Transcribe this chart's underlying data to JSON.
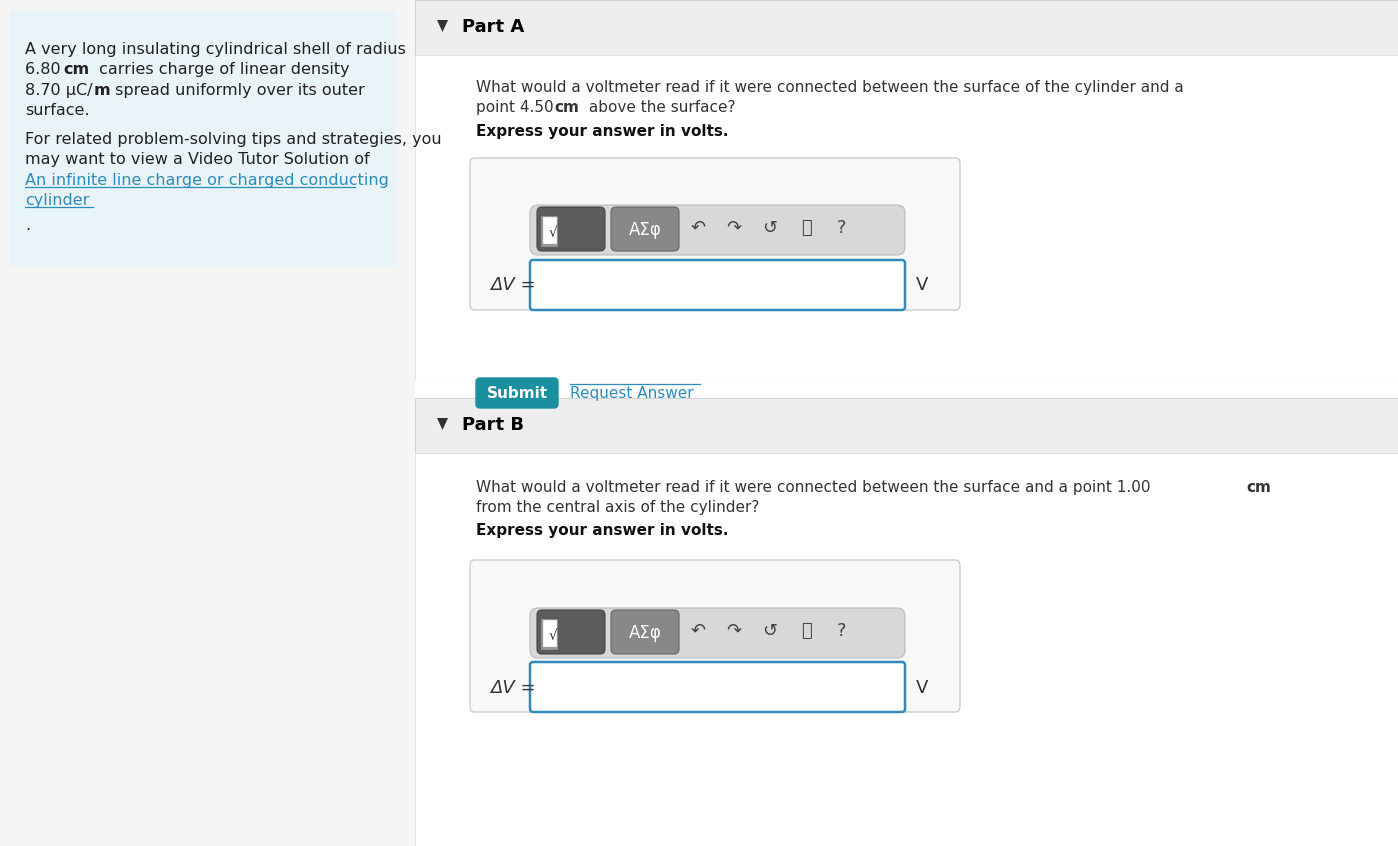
{
  "bg_color": "#f0f0f0",
  "left_panel_bg": "#e8f4f8",
  "part_section_bg": "#eeeeee",
  "teal_color": "#1a8fa0",
  "link_color": "#2e8bba",
  "input_border": "#2e8bba",
  "left_text_line1": "A very long insulating cylindrical shell of radius",
  "left_text_line2a": "6.80 ",
  "left_text_line2b": "cm",
  "left_text_line2c": " carries charge of linear density",
  "left_text_line3a": "8.70 μC/",
  "left_text_line3b": "m",
  "left_text_line3c": " spread uniformly over its outer",
  "left_text_line4": "surface.",
  "left_text_line5": "For related problem-solving tips and strategies, you",
  "left_text_line6": "may want to view a Video Tutor Solution of",
  "left_link_line1": "An infinite line charge or charged conducting",
  "left_link_line2": "cylinder",
  "left_dot": ".",
  "part_a_label": "Part A",
  "part_a_q1": "What would a voltmeter read if it were connected between the surface of the cylinder and a",
  "part_a_q2a": "point 4.50 ",
  "part_a_q2b": "cm",
  "part_a_q2c": " above the surface?",
  "part_a_express": "Express your answer in volts.",
  "part_a_dv": "ΔV =",
  "part_a_unit": "V",
  "submit_label": "Submit",
  "request_label": "Request Answer",
  "part_b_label": "Part B",
  "part_b_q1a": "What would a voltmeter read if it were connected between the surface and a point 1.00 ",
  "part_b_q1b": "cm",
  "part_b_q2": "from the central axis of the cylinder?",
  "part_b_express": "Express your answer in volts.",
  "part_b_dv": "ΔV =",
  "part_b_unit": "V",
  "toolbar_icons": [
    "↶",
    "↷",
    "↺",
    "⎓",
    "?"
  ],
  "toolbar_asf": "AΣφ"
}
